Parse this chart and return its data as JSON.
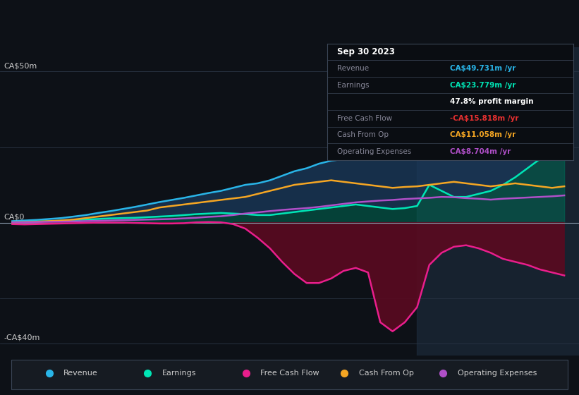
{
  "bg_color": "#0d1117",
  "colors": {
    "revenue": "#29b5e8",
    "earnings": "#00e5b5",
    "free_cash_flow": "#e91e8c",
    "cash_from_op": "#f5a623",
    "operating_expenses": "#b04fc8"
  },
  "legend_items": [
    {
      "label": "Revenue",
      "color": "#29b5e8"
    },
    {
      "label": "Earnings",
      "color": "#00e5b5"
    },
    {
      "label": "Free Cash Flow",
      "color": "#e91e8c"
    },
    {
      "label": "Cash From Op",
      "color": "#f5a623"
    },
    {
      "label": "Operating Expenses",
      "color": "#b04fc8"
    }
  ],
  "ylabel_top": "CA$50m",
  "ylabel_zero": "CA$0",
  "ylabel_bottom": "-CA$40m",
  "xlim": [
    2012.5,
    2024.3
  ],
  "ylim": [
    -44,
    58
  ],
  "x_ticks": [
    2013,
    2014,
    2015,
    2016,
    2017,
    2018,
    2019,
    2020,
    2021,
    2022,
    2023
  ],
  "years": [
    2012.75,
    2013.0,
    2013.25,
    2013.5,
    2013.75,
    2014.0,
    2014.25,
    2014.5,
    2014.75,
    2015.0,
    2015.25,
    2015.5,
    2015.75,
    2016.0,
    2016.25,
    2016.5,
    2016.75,
    2017.0,
    2017.25,
    2017.5,
    2017.75,
    2018.0,
    2018.25,
    2018.5,
    2018.75,
    2019.0,
    2019.25,
    2019.5,
    2019.75,
    2020.0,
    2020.25,
    2020.5,
    2020.75,
    2021.0,
    2021.25,
    2021.5,
    2021.75,
    2022.0,
    2022.25,
    2022.5,
    2022.75,
    2023.0,
    2023.25,
    2023.5,
    2023.75,
    2024.0
  ],
  "revenue": [
    0.5,
    0.7,
    0.9,
    1.2,
    1.5,
    2.0,
    2.5,
    3.2,
    3.8,
    4.5,
    5.2,
    6.0,
    6.8,
    7.5,
    8.2,
    9.0,
    9.8,
    10.5,
    11.5,
    12.5,
    13.0,
    14.0,
    15.5,
    17.0,
    18.0,
    19.5,
    20.5,
    21.0,
    21.5,
    22.5,
    22.0,
    21.5,
    21.8,
    22.5,
    24.5,
    27.0,
    29.0,
    31.0,
    34.0,
    37.0,
    39.0,
    41.0,
    44.0,
    47.0,
    50.0,
    52.0
  ],
  "earnings": [
    0.2,
    0.3,
    0.4,
    0.5,
    0.6,
    0.8,
    1.0,
    1.2,
    1.4,
    1.5,
    1.6,
    1.8,
    2.0,
    2.2,
    2.5,
    2.8,
    3.0,
    3.2,
    3.0,
    2.8,
    2.5,
    2.5,
    3.0,
    3.5,
    4.0,
    4.5,
    5.0,
    5.5,
    6.0,
    5.5,
    5.0,
    4.5,
    4.8,
    5.5,
    12.5,
    10.5,
    8.5,
    8.5,
    9.5,
    10.5,
    12.5,
    15.0,
    18.0,
    21.0,
    23.5,
    24.5
  ],
  "free_cash_flow": [
    -0.5,
    -0.6,
    -0.5,
    -0.4,
    -0.3,
    -0.2,
    -0.1,
    0.0,
    0.0,
    0.0,
    -0.1,
    -0.2,
    -0.3,
    -0.3,
    -0.2,
    0.1,
    0.2,
    0.1,
    -0.5,
    -2.0,
    -5.0,
    -8.5,
    -13.0,
    -17.0,
    -20.0,
    -20.0,
    -18.5,
    -16.0,
    -15.0,
    -16.5,
    -33.0,
    -36.0,
    -33.0,
    -28.0,
    -14.0,
    -10.0,
    -8.0,
    -7.5,
    -8.5,
    -10.0,
    -12.0,
    -13.0,
    -14.0,
    -15.5,
    -16.5,
    -17.5
  ],
  "cash_from_op": [
    0.1,
    0.2,
    0.3,
    0.5,
    0.7,
    1.0,
    1.5,
    2.0,
    2.5,
    3.0,
    3.5,
    4.0,
    5.0,
    5.5,
    6.0,
    6.5,
    7.0,
    7.5,
    8.0,
    8.5,
    9.5,
    10.5,
    11.5,
    12.5,
    13.0,
    13.5,
    14.0,
    13.5,
    13.0,
    12.5,
    12.0,
    11.5,
    11.8,
    12.0,
    12.5,
    13.0,
    13.5,
    13.0,
    12.5,
    12.0,
    12.5,
    13.0,
    12.5,
    12.0,
    11.5,
    12.0
  ],
  "operating_expenses": [
    0.1,
    0.15,
    0.2,
    0.25,
    0.3,
    0.4,
    0.5,
    0.6,
    0.7,
    0.8,
    0.9,
    1.0,
    1.1,
    1.2,
    1.4,
    1.6,
    1.9,
    2.1,
    2.5,
    3.0,
    3.4,
    3.8,
    4.2,
    4.5,
    4.8,
    5.2,
    5.7,
    6.2,
    6.7,
    7.0,
    7.3,
    7.5,
    7.8,
    8.0,
    8.2,
    8.5,
    8.4,
    8.1,
    7.9,
    7.6,
    7.9,
    8.1,
    8.3,
    8.5,
    8.7,
    9.0
  ],
  "info_box": {
    "date": "Sep 30 2023",
    "rows": [
      {
        "label": "Revenue",
        "value": "CA$49.731m /yr",
        "val_color": "#29b5e8",
        "label_color": "#888899"
      },
      {
        "label": "Earnings",
        "value": "CA$23.779m /yr",
        "val_color": "#00e5b5",
        "label_color": "#888899"
      },
      {
        "label": "",
        "value": "47.8% profit margin",
        "val_color": "#ffffff",
        "label_color": "#888899"
      },
      {
        "label": "Free Cash Flow",
        "value": "-CA$15.818m /yr",
        "val_color": "#e83030",
        "label_color": "#888899"
      },
      {
        "label": "Cash From Op",
        "value": "CA$11.058m /yr",
        "val_color": "#f5a623",
        "label_color": "#888899"
      },
      {
        "label": "Operating Expenses",
        "value": "CA$8.704m /yr",
        "val_color": "#b04fc8",
        "label_color": "#888899"
      }
    ]
  }
}
